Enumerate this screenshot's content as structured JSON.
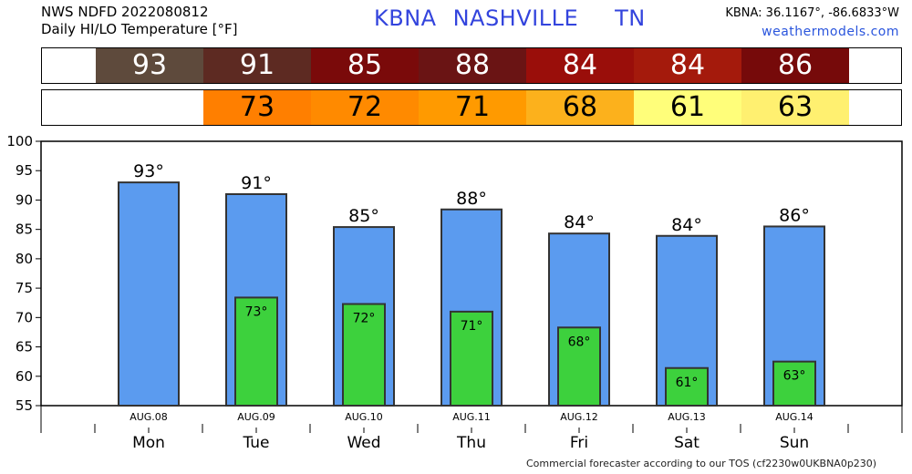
{
  "header": {
    "line1": "NWS NDFD 2022080812",
    "line2": "Daily HI/LO Temperature [°F]",
    "station": "KBNA",
    "city": "NASHVILLE",
    "state": "TN",
    "coords": "KBNA: 36.1167°, -86.6833°W",
    "site": "weathermodels.com"
  },
  "footer": "Commercial forecaster according to our TOS (cf2230w0UKBNA0p230)",
  "hi_strip": [
    {
      "value": "93",
      "bg": "#5e4a3c",
      "fg": "#ffffff"
    },
    {
      "value": "91",
      "bg": "#5d2a22",
      "fg": "#ffffff"
    },
    {
      "value": "85",
      "bg": "#7a0a0a",
      "fg": "#ffffff"
    },
    {
      "value": "88",
      "bg": "#6a1414",
      "fg": "#ffffff"
    },
    {
      "value": "84",
      "bg": "#9a0e0a",
      "fg": "#ffffff"
    },
    {
      "value": "84",
      "bg": "#a41a0c",
      "fg": "#ffffff"
    },
    {
      "value": "86",
      "bg": "#760a0a",
      "fg": "#ffffff"
    }
  ],
  "lo_strip": [
    {
      "value": "",
      "bg": "#ffffff",
      "fg": "#000000"
    },
    {
      "value": "73",
      "bg": "#ff7f00",
      "fg": "#000000"
    },
    {
      "value": "72",
      "bg": "#ff8a00",
      "fg": "#000000"
    },
    {
      "value": "71",
      "bg": "#ff9a00",
      "fg": "#000000"
    },
    {
      "value": "68",
      "bg": "#fcb11c",
      "fg": "#000000"
    },
    {
      "value": "61",
      "bg": "#fffe7a",
      "fg": "#000000"
    },
    {
      "value": "63",
      "bg": "#fff070",
      "fg": "#000000"
    }
  ],
  "chart_data": {
    "type": "bar",
    "dates": [
      "AUG.08",
      "AUG.09",
      "AUG.10",
      "AUG.11",
      "AUG.12",
      "AUG.13",
      "AUG.14"
    ],
    "days": [
      "Mon",
      "Tue",
      "Wed",
      "Thu",
      "Fri",
      "Sat",
      "Sun"
    ],
    "series": [
      {
        "values": [
          93,
          91,
          85.4,
          88.4,
          84.3,
          83.9,
          85.5
        ],
        "labels": [
          "93°",
          "91°",
          "85°",
          "88°",
          "84°",
          "84°",
          "86°"
        ],
        "color": "#5b9bef"
      },
      {
        "values": [
          null,
          73.4,
          72.3,
          71,
          68.3,
          61.4,
          62.5
        ],
        "labels": [
          "",
          "73°",
          "72°",
          "71°",
          "68°",
          "61°",
          "63°"
        ],
        "color": "#3dd13d"
      }
    ],
    "ylim": [
      55,
      100
    ],
    "yticks": [
      55,
      60,
      65,
      70,
      75,
      80,
      85,
      90,
      95,
      100
    ],
    "grid": false
  }
}
